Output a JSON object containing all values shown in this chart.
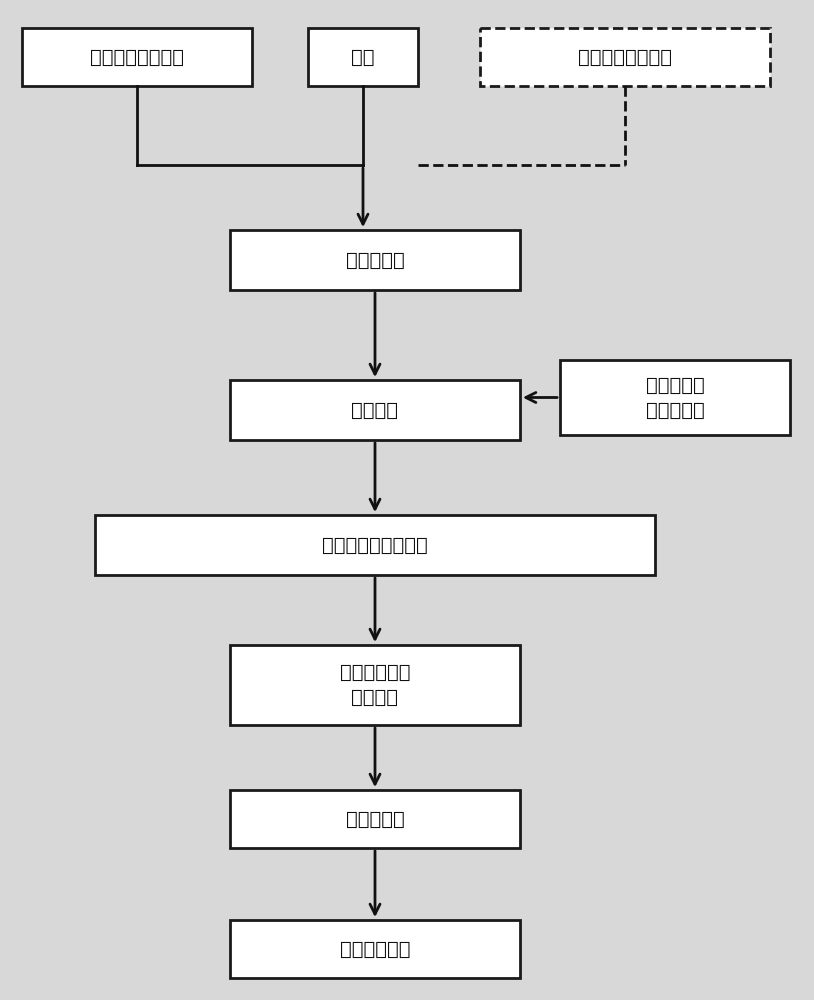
{
  "bg_color": "#d8d8d8",
  "box_color": "#ffffff",
  "box_edge_color": "#1a1a1a",
  "text_color": "#111111",
  "arrow_color": "#111111",
  "figsize": [
    8.14,
    10.0
  ],
  "dpi": 100,
  "boxes": [
    {
      "id": "metal_salt",
      "label": "可溶性金属盐溶液",
      "solid": true
    },
    {
      "id": "alkali",
      "label": "碱液",
      "solid": true
    },
    {
      "id": "reducing",
      "label": "还原剂和有机配体",
      "solid": false
    },
    {
      "id": "mix_room",
      "label": "常温下混合",
      "solid": true
    },
    {
      "id": "mix_heat",
      "label": "混合升温",
      "solid": true
    },
    {
      "id": "supercritical_box",
      "label": "经预热加压\n的超临界水",
      "solid": true
    },
    {
      "id": "reaction",
      "label": "超临界水热合成反应",
      "solid": true
    },
    {
      "id": "cooling",
      "label": "冷却、收集、\n离心分离",
      "solid": true
    },
    {
      "id": "washing",
      "label": "洗涤、干燥",
      "solid": true
    },
    {
      "id": "product",
      "label": "纳米颗粒产物",
      "solid": true
    }
  ]
}
